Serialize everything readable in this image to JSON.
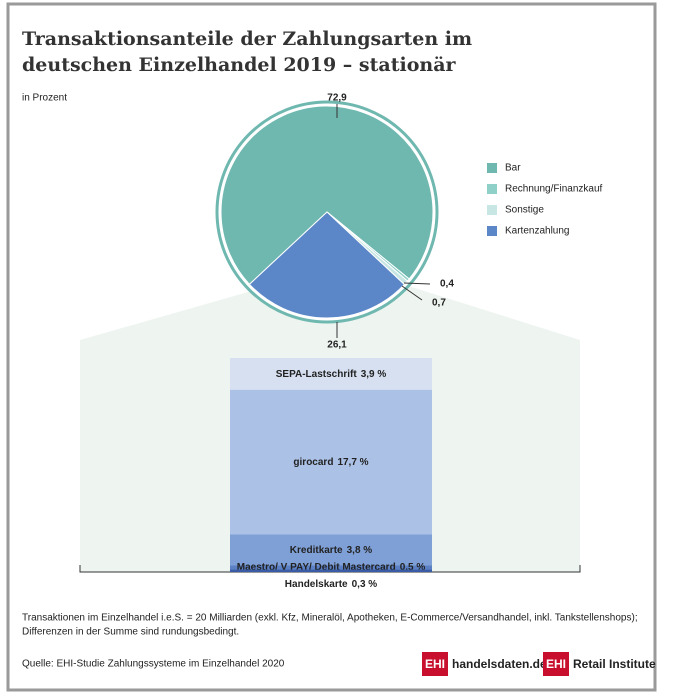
{
  "chart_data": [
    {
      "type": "pie",
      "title": [
        "Transaktionsanteile der Zahlungsarten im",
        "deutschen Einzelhandel 2019 – stationär"
      ],
      "subtitle": "in Prozent",
      "categories": [
        "Bar",
        "Rechnung/Finanzkauf",
        "Sonstige",
        "Kartenzahlung"
      ],
      "values": [
        72.9,
        0.4,
        0.7,
        26.1
      ],
      "value_labels": [
        "72,9",
        "0,4",
        "0,7",
        "26,1"
      ],
      "colors": [
        "#6fb8b0",
        "#8fd0c8",
        "#c8e6e3",
        "#5b87c8"
      ],
      "legend": "right"
    },
    {
      "type": "stacked-bar",
      "categories": [
        "SEPA-Lastschrift",
        "girocard",
        "Kreditkarte",
        "Maestro/ V PAY/ Debit Mastercard",
        "Handelskarte"
      ],
      "values": [
        3.9,
        17.7,
        3.8,
        0.5,
        0.3
      ],
      "value_labels": [
        "3,9 %",
        "17,7 %",
        "3,8 %",
        "0,5 %",
        "0,3 %"
      ],
      "colors": [
        "#d6e0f1",
        "#abc1e6",
        "#7fa0d7",
        "#5b80c4",
        "#3a5ca6"
      ]
    }
  ],
  "notes": [
    "Transaktionen im Einzelhandel i.e.S. = 20 Milliarden (exkl. Kfz, Mineralöl, Apotheken, E-Commerce/Versandhandel, inkl. Tankstellenshops);",
    "Differenzen in der Summe sind rundungsbedingt."
  ],
  "source": "Quelle: EHI-Studie Zahlungssysteme im Einzelhandel 2020",
  "logos": {
    "ehi_1": "EHI",
    "site": "handelsdaten.de",
    "ehi_2": "EHI",
    "institute": "Retail Institute"
  }
}
